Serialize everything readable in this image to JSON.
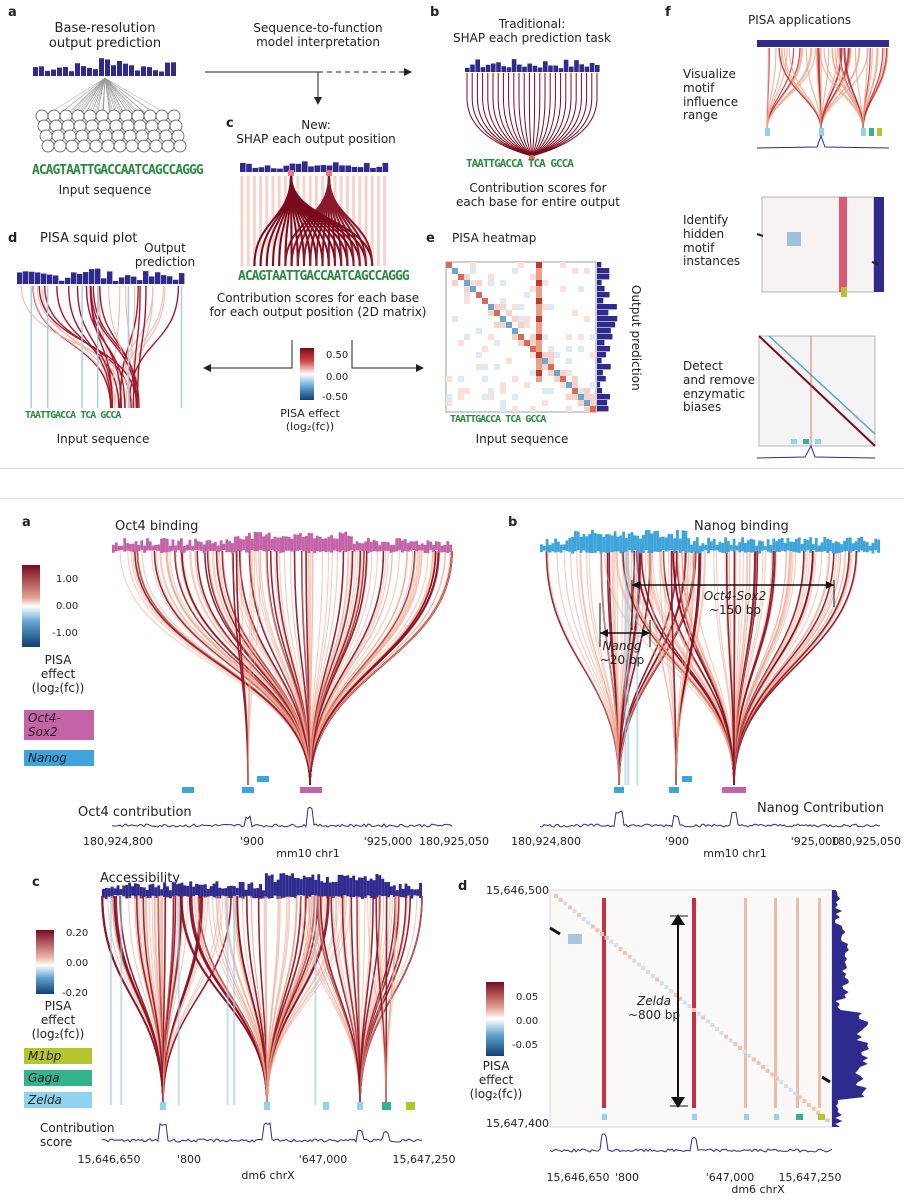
{
  "top": {
    "a": {
      "label": "a",
      "title": "Base-resolution output prediction",
      "title_l1": "Base-resolution",
      "title_l2": "output prediction",
      "sequence": "ACAGTAATTGACCAATCAGCCAGGG",
      "seq_label": "Input sequence"
    },
    "interp": {
      "l1": "Sequence-to-function",
      "l2": "model interpretation"
    },
    "b": {
      "label": "b",
      "l1": "Traditional:",
      "l2": "SHAP each prediction task",
      "logo_text": "TAATTGACCA TCA GCCA",
      "c1": "Contribution scores for",
      "c2": "each base for entire output"
    },
    "c": {
      "label": "c",
      "l1": "New:",
      "l2": "SHAP each output position",
      "sequence": "ACAGTAATTGACCAATCAGCCAGGG",
      "d1": "Contribution scores for each base",
      "d2": "for each output position (2D matrix)",
      "scale_ticks": [
        "0.50",
        "0.00",
        "-0.50"
      ],
      "scale_l1": "PISA effect",
      "scale_l2": "(log₂(fc))"
    },
    "d": {
      "label": "d",
      "title": "PISA squid plot",
      "out_l1": "Output",
      "out_l2": "prediction",
      "seq_label": "Input sequence"
    },
    "e": {
      "label": "e",
      "title": "PISA heatmap",
      "side": "Output prediction",
      "seq_label": "Input sequence"
    },
    "f": {
      "label": "f",
      "title": "PISA applications",
      "app1": [
        "Visualize",
        "motif",
        "influence",
        "range"
      ],
      "app2": [
        "Identify",
        "hidden",
        "motif",
        "instances"
      ],
      "app3": [
        "Detect",
        "and remove",
        "enzymatic",
        "biases"
      ]
    }
  },
  "bottom": {
    "a": {
      "label": "a",
      "title": "Oct4 binding",
      "scale_ticks": [
        "1.00",
        "0.00",
        "-1.00"
      ],
      "scale_l1": "PISA",
      "scale_l2": "effect",
      "scale_l3": "(log₂(fc))",
      "motifs": [
        "Oct4-Sox2",
        "Nanog"
      ],
      "contrib": "Oct4 contribution",
      "xticks": [
        "180,924,800",
        "'900",
        "'925,000",
        "180,925,050"
      ],
      "xlabel": "mm10 chr1",
      "colors": {
        "oct4": "#c563a8",
        "nanog": "#3ea4dc",
        "pos": "#8b0f22",
        "neg": "#2b6fae"
      }
    },
    "b": {
      "label": "b",
      "title": "Nanog binding",
      "ann1_l1": "Oct4-Sox2",
      "ann1_l2": "~150 bp",
      "ann2_l1": "Nanog",
      "ann2_l2": "~20 bp",
      "contrib": "Nanog Contribution",
      "xticks": [
        "180,924,800",
        "'900",
        "'925,000",
        "180,925,050"
      ],
      "xlabel": "mm10 chr1"
    },
    "c": {
      "label": "c",
      "title": "Accessibility",
      "scale_ticks": [
        "0.20",
        "0.00",
        "-0.20"
      ],
      "scale_l1": "PISA",
      "scale_l2": "effect",
      "scale_l3": "(log₂(fc))",
      "motifs": [
        "M1bp",
        "Gaga",
        "Zelda"
      ],
      "contrib_l1": "Contribution",
      "contrib_l2": "score",
      "xticks": [
        "15,646,650",
        "'800",
        "'647,000",
        "15,647,250"
      ],
      "xlabel": "dm6 chrX",
      "colors": {
        "m1bp": "#b5c52e",
        "gaga": "#35b38f",
        "zelda": "#8fd3f0"
      }
    },
    "d": {
      "label": "d",
      "yticks": [
        "15,646,500",
        "15,647,400"
      ],
      "ann_l1": "Zelda",
      "ann_l2": "~800 bp",
      "scale_ticks": [
        "0.05",
        "0.00",
        "-0.05"
      ],
      "scale_l1": "PISA",
      "scale_l2": "effect",
      "scale_l3": "(log₂(fc))",
      "xticks": [
        "15,646,650",
        "'800",
        "'647,000",
        "15,647,250"
      ],
      "xlabel": "dm6 chrX"
    }
  }
}
